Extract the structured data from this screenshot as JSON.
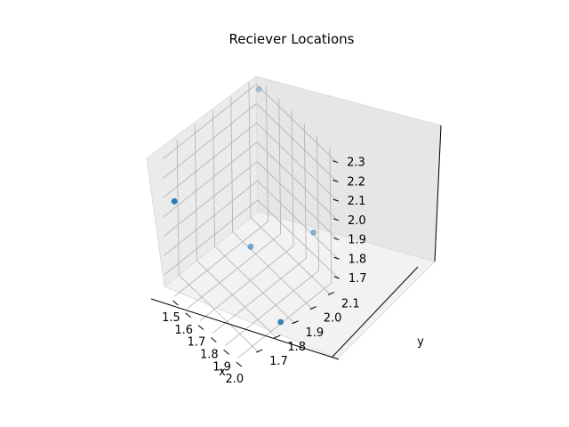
{
  "chart_data": {
    "type": "scatter",
    "title": "Reciever Locations",
    "xlabel": "x",
    "ylabel": "y",
    "zlabel": "",
    "xlim": [
      1.42,
      2.05
    ],
    "ylim": [
      1.62,
      2.14
    ],
    "zlim": [
      1.64,
      2.34
    ],
    "xticks": [
      "1.5",
      "1.6",
      "1.7",
      "1.8",
      "1.9",
      "2.0"
    ],
    "yticks": [
      "1.7",
      "1.8",
      "1.9",
      "2.0",
      "2.1"
    ],
    "zticks": [
      "1.7",
      "1.8",
      "1.9",
      "2.0",
      "2.1",
      "2.2",
      "2.3"
    ],
    "marker_color": "#1f77b4",
    "points": [
      {
        "x": 1.45,
        "y": 1.66,
        "z": 2.07
      },
      {
        "x": 1.47,
        "y": 2.12,
        "z": 2.32
      },
      {
        "x": 1.62,
        "y": 1.96,
        "z": 1.72
      },
      {
        "x": 1.92,
        "y": 2.1,
        "z": 1.88
      },
      {
        "x": 2.01,
        "y": 1.85,
        "z": 1.66
      }
    ],
    "grid": true,
    "legend": "none"
  }
}
